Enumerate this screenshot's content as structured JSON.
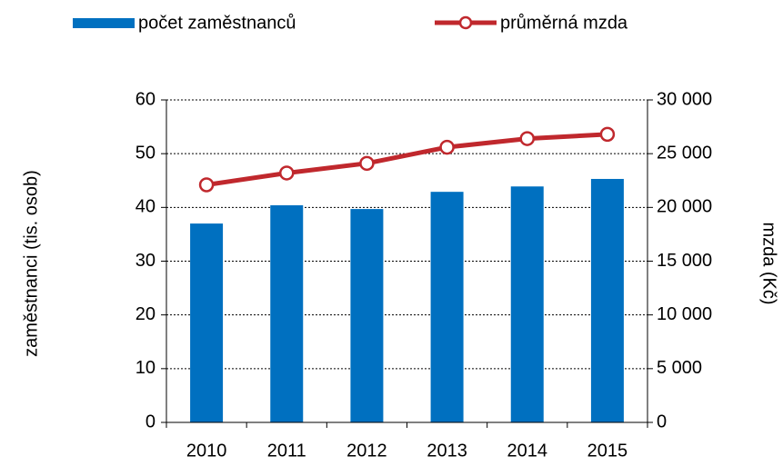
{
  "chart_data": {
    "type": "bar",
    "categories": [
      "2010",
      "2011",
      "2012",
      "2013",
      "2014",
      "2015"
    ],
    "series": [
      {
        "name": "počet zaměstnanců",
        "type": "bar",
        "color": "#0070c0",
        "values": [
          37,
          40.4,
          39.7,
          42.9,
          43.9,
          45.3
        ]
      },
      {
        "name": "průměrná mzda",
        "type": "line",
        "axis": "y2",
        "color": "#c0282d",
        "values": [
          22100,
          23200,
          24100,
          25600,
          26400,
          26800
        ]
      }
    ],
    "ylabel": "zaměstnanci (tis. osob)",
    "y2label": "mzda (Kč)",
    "ylim": [
      0,
      60
    ],
    "yticks": [
      0,
      10,
      20,
      30,
      40,
      50,
      60
    ],
    "y2lim": [
      0,
      30000
    ],
    "y2ticks": [
      0,
      {
        "value": 5000,
        "label": "5 000"
      },
      {
        "value": 10000,
        "label": "10 000"
      },
      {
        "value": 15000,
        "label": "15 000"
      },
      {
        "value": 20000,
        "label": "20 000"
      },
      {
        "value": 25000,
        "label": "25 000"
      },
      {
        "value": 30000,
        "label": "30 000"
      }
    ],
    "grid": true,
    "legend": "top"
  }
}
